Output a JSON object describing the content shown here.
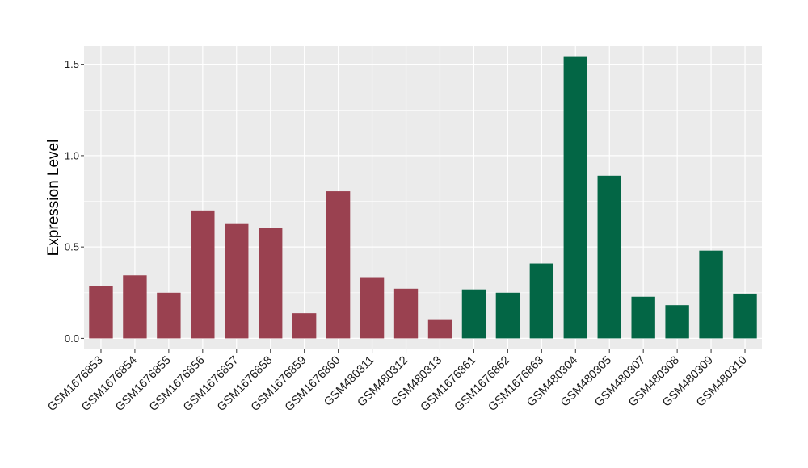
{
  "chart_data": {
    "type": "bar",
    "title": "",
    "xlabel": "",
    "ylabel": "Expression Level",
    "ylim": [
      -0.06,
      1.6
    ],
    "yticks": [
      0.0,
      0.5,
      1.0,
      1.5
    ],
    "ytick_labels": [
      "0.0",
      "0.5",
      "1.0",
      "1.5"
    ],
    "grid": true,
    "legend": "none",
    "categories": [
      "GSM1676853",
      "GSM1676854",
      "GSM1676855",
      "GSM1676856",
      "GSM1676857",
      "GSM1676858",
      "GSM1676859",
      "GSM1676860",
      "GSM480311",
      "GSM480312",
      "GSM480313",
      "GSM1676861",
      "GSM1676862",
      "GSM1676863",
      "GSM480304",
      "GSM480305",
      "GSM480307",
      "GSM480308",
      "GSM480309",
      "GSM480310"
    ],
    "values": [
      0.285,
      0.345,
      0.25,
      0.7,
      0.63,
      0.605,
      0.138,
      0.805,
      0.335,
      0.272,
      0.105,
      0.268,
      0.25,
      0.41,
      1.54,
      0.89,
      0.228,
      0.182,
      0.48,
      0.245
    ],
    "groups": [
      0,
      0,
      0,
      0,
      0,
      0,
      0,
      0,
      0,
      0,
      0,
      1,
      1,
      1,
      1,
      1,
      1,
      1,
      1,
      1
    ],
    "group_colors": [
      "#9a4150",
      "#036645"
    ],
    "panel_color": "#ebebeb",
    "grid_color": "#ffffff"
  }
}
